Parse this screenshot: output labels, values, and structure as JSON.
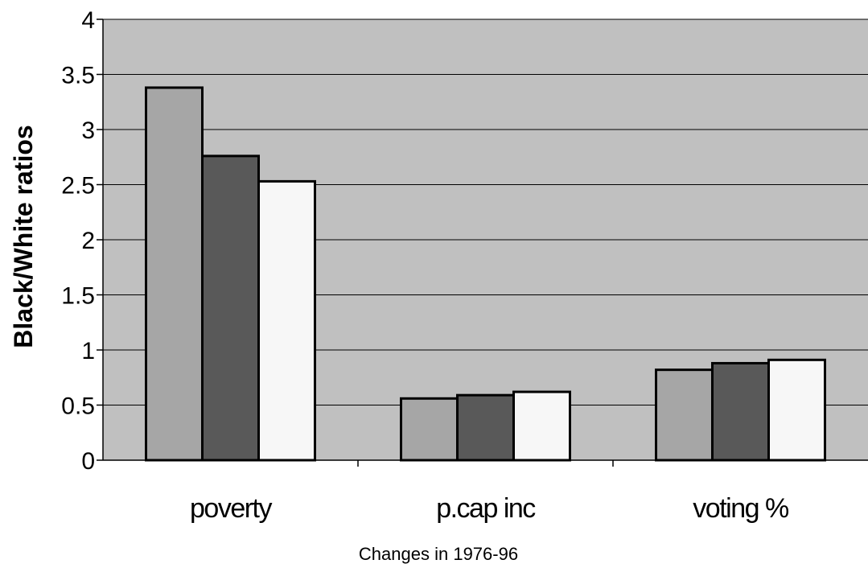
{
  "chart_data": {
    "type": "bar",
    "title": "",
    "xlabel": "Changes in 1976-96",
    "ylabel": "Black/White ratios",
    "categories": [
      "poverty",
      "p.cap inc",
      "voting %"
    ],
    "series": [
      {
        "values": [
          3.38,
          0.56,
          0.82
        ],
        "color": "#a6a6a6"
      },
      {
        "values": [
          2.76,
          0.59,
          0.88
        ],
        "color": "#595959"
      },
      {
        "values": [
          2.53,
          0.62,
          0.91
        ],
        "color": "#f7f7f7"
      }
    ],
    "ylim": [
      0,
      4
    ],
    "yticks": [
      "0",
      "0.5",
      "1",
      "1.5",
      "2",
      "2.5",
      "3",
      "3.5",
      "4"
    ],
    "grid": true,
    "plot_background": "#c0c0c0"
  }
}
